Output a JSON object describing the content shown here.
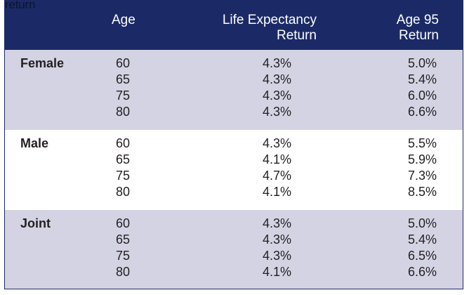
{
  "stray_text": "return",
  "header": {
    "age": "Age",
    "life_line1": "Life Expectancy",
    "life_line2": "Return",
    "a95_line1": "Age 95",
    "a95_line2": "Return"
  },
  "groups": [
    {
      "label": "Female",
      "rows": [
        {
          "age": "60",
          "life": "4.3%",
          "a95": "5.0%"
        },
        {
          "age": "65",
          "life": "4.3%",
          "a95": "5.4%"
        },
        {
          "age": "75",
          "life": "4.3%",
          "a95": "6.0%"
        },
        {
          "age": "80",
          "life": "4.3%",
          "a95": "6.6%"
        }
      ]
    },
    {
      "label": "Male",
      "rows": [
        {
          "age": "60",
          "life": "4.3%",
          "a95": "5.5%"
        },
        {
          "age": "65",
          "life": "4.1%",
          "a95": "5.9%"
        },
        {
          "age": "75",
          "life": "4.7%",
          "a95": "7.3%"
        },
        {
          "age": "80",
          "life": "4.1%",
          "a95": "8.5%"
        }
      ]
    },
    {
      "label": "Joint",
      "rows": [
        {
          "age": "60",
          "life": "4.3%",
          "a95": "5.0%"
        },
        {
          "age": "65",
          "life": "4.3%",
          "a95": "5.4%"
        },
        {
          "age": "75",
          "life": "4.3%",
          "a95": "6.5%"
        },
        {
          "age": "80",
          "life": "4.1%",
          "a95": "6.6%"
        }
      ]
    }
  ],
  "colors": {
    "header_bg": "#1b2a66",
    "shaded_row": "#d4d3e3",
    "white_row": "#ffffff",
    "text": "#231f20"
  }
}
